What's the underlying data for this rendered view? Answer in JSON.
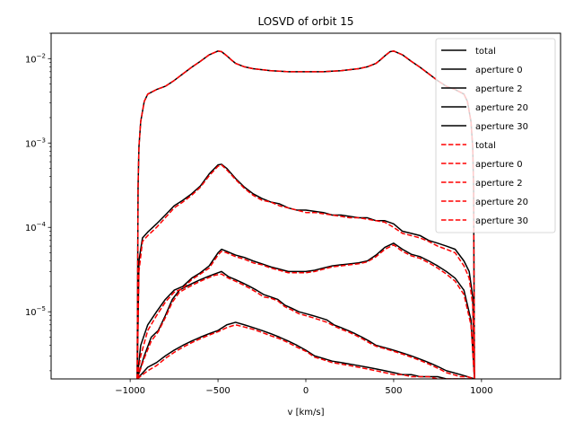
{
  "chart_data": {
    "type": "line",
    "title": "LOSVD of orbit 15",
    "xlabel": "v [km/s]",
    "ylabel": "",
    "yscale": "log",
    "xlim": [
      -1450,
      1450
    ],
    "ylim": [
      1.6e-06,
      0.02
    ],
    "xticks": [
      -1000,
      -500,
      0,
      500,
      1000
    ],
    "xtick_labels": [
      "−1000",
      "−500",
      "0",
      "500",
      "1000"
    ],
    "yticks": [
      1e-05,
      0.0001,
      0.001,
      0.01
    ],
    "ytick_labels": [
      {
        "base": "10",
        "exp": "−5"
      },
      {
        "base": "10",
        "exp": "−4"
      },
      {
        "base": "10",
        "exp": "−3"
      },
      {
        "base": "10",
        "exp": "−2"
      }
    ],
    "grid": false,
    "legend_position": "upper right",
    "series": [
      {
        "name": "total",
        "color": "#000000",
        "dash": "solid",
        "x": [
          -960,
          -955,
          -950,
          -940,
          -920,
          -900,
          -850,
          -800,
          -750,
          -700,
          -650,
          -600,
          -550,
          -500,
          -480,
          -450,
          -420,
          -400,
          -350,
          -300,
          -250,
          -200,
          -150,
          -100,
          -50,
          0,
          50,
          100,
          150,
          200,
          250,
          300,
          350,
          400,
          420,
          450,
          480,
          500,
          550,
          600,
          650,
          700,
          750,
          800,
          850,
          900,
          920,
          940,
          950,
          955,
          960
        ],
        "y": [
          1.6e-06,
          0.0003,
          0.0009,
          0.0018,
          0.0031,
          0.0038,
          0.0043,
          0.0047,
          0.0055,
          0.0066,
          0.0079,
          0.0093,
          0.0111,
          0.0123,
          0.0121,
          0.0108,
          0.0095,
          0.0088,
          0.008,
          0.0076,
          0.0074,
          0.0072,
          0.0071,
          0.007,
          0.007,
          0.007,
          0.007,
          0.007,
          0.0071,
          0.0072,
          0.0074,
          0.0076,
          0.008,
          0.0088,
          0.0095,
          0.0108,
          0.0121,
          0.0123,
          0.0111,
          0.0093,
          0.0079,
          0.0066,
          0.0055,
          0.0047,
          0.0043,
          0.0038,
          0.0031,
          0.0018,
          0.0009,
          0.0003,
          1.6e-06
        ]
      },
      {
        "name": "aperture 0",
        "color": "#000000",
        "dash": "solid",
        "x": [
          -960,
          -950,
          -930,
          -900,
          -850,
          -800,
          -750,
          -700,
          -650,
          -600,
          -550,
          -500,
          -480,
          -450,
          -400,
          -350,
          -300,
          -250,
          -200,
          -150,
          -100,
          -50,
          0,
          50,
          100,
          150,
          200,
          250,
          300,
          350,
          400,
          450,
          500,
          550,
          600,
          650,
          700,
          750,
          800,
          850,
          900,
          930,
          950,
          960
        ],
        "y": [
          1.6e-06,
          4e-05,
          7.5e-05,
          8.8e-05,
          0.00011,
          0.00014,
          0.00018,
          0.00021,
          0.00025,
          0.00031,
          0.00043,
          0.00055,
          0.00056,
          0.0005,
          0.00038,
          0.0003,
          0.00025,
          0.00022,
          0.0002,
          0.00019,
          0.00017,
          0.00016,
          0.00016,
          0.000155,
          0.00015,
          0.00014,
          0.00014,
          0.000135,
          0.00013,
          0.00013,
          0.00012,
          0.00012,
          0.00011,
          9e-05,
          8.5e-05,
          8e-05,
          7e-05,
          6.5e-05,
          6e-05,
          5.5e-05,
          4e-05,
          3e-05,
          1.5e-05,
          1.6e-06
        ]
      },
      {
        "name": "aperture 2",
        "color": "#000000",
        "dash": "solid",
        "x": [
          -960,
          -940,
          -900,
          -850,
          -800,
          -750,
          -700,
          -650,
          -600,
          -550,
          -500,
          -480,
          -450,
          -400,
          -350,
          -300,
          -250,
          -200,
          -150,
          -100,
          -50,
          0,
          50,
          100,
          150,
          200,
          250,
          300,
          350,
          400,
          450,
          500,
          550,
          600,
          650,
          700,
          750,
          800,
          850,
          900,
          940,
          960
        ],
        "y": [
          1.6e-06,
          4e-06,
          7e-06,
          1e-05,
          1.4e-05,
          1.8e-05,
          2e-05,
          2.5e-05,
          2.9e-05,
          3.5e-05,
          5e-05,
          5.5e-05,
          5.2e-05,
          4.7e-05,
          4.4e-05,
          4e-05,
          3.7e-05,
          3.4e-05,
          3.2e-05,
          3e-05,
          3e-05,
          3e-05,
          3.1e-05,
          3.3e-05,
          3.5e-05,
          3.6e-05,
          3.7e-05,
          3.8e-05,
          4e-05,
          4.7e-05,
          5.8e-05,
          6.5e-05,
          5.5e-05,
          4.8e-05,
          4.5e-05,
          4e-05,
          3.5e-05,
          3e-05,
          2.5e-05,
          1.8e-05,
          8e-06,
          1.6e-06
        ]
      },
      {
        "name": "aperture 20",
        "color": "#000000",
        "dash": "solid",
        "x": [
          -960,
          -920,
          -880,
          -840,
          -800,
          -760,
          -720,
          -680,
          -640,
          -600,
          -560,
          -520,
          -480,
          -440,
          -400,
          -360,
          -320,
          -280,
          -240,
          -200,
          -160,
          -120,
          -80,
          -40,
          0,
          40,
          80,
          120,
          160,
          200,
          240,
          280,
          320,
          360,
          400,
          440,
          480,
          520,
          560,
          600,
          640,
          680,
          720,
          760,
          800,
          840,
          880,
          920,
          960
        ],
        "y": [
          1.6e-06,
          3e-06,
          5e-06,
          6e-06,
          9e-06,
          1.4e-05,
          1.8e-05,
          2e-05,
          2.2e-05,
          2.4e-05,
          2.6e-05,
          2.8e-05,
          3e-05,
          2.6e-05,
          2.4e-05,
          2.2e-05,
          2e-05,
          1.8e-05,
          1.6e-05,
          1.5e-05,
          1.4e-05,
          1.2e-05,
          1.1e-05,
          1e-05,
          9.5e-06,
          9e-06,
          8.5e-06,
          8e-06,
          7e-06,
          6.5e-06,
          6e-06,
          5.5e-06,
          5e-06,
          4.5e-06,
          4e-06,
          3.8e-06,
          3.6e-06,
          3.4e-06,
          3.2e-06,
          3e-06,
          2.8e-06,
          2.6e-06,
          2.4e-06,
          2.2e-06,
          2e-06,
          1.9e-06,
          1.8e-06,
          1.7e-06,
          1.6e-06
        ]
      },
      {
        "name": "aperture 30",
        "color": "#000000",
        "dash": "solid",
        "x": [
          -960,
          -900,
          -850,
          -800,
          -750,
          -700,
          -650,
          -600,
          -550,
          -500,
          -450,
          -400,
          -350,
          -300,
          -250,
          -200,
          -150,
          -100,
          -50,
          0,
          50,
          100,
          150,
          200,
          250,
          300,
          350,
          400,
          450,
          500,
          550,
          600,
          650,
          700,
          750,
          800,
          850,
          900,
          960
        ],
        "y": [
          1.6e-06,
          2.2e-06,
          2.5e-06,
          3e-06,
          3.5e-06,
          4e-06,
          4.5e-06,
          5e-06,
          5.5e-06,
          6e-06,
          7e-06,
          7.5e-06,
          7e-06,
          6.5e-06,
          6e-06,
          5.5e-06,
          5e-06,
          4.5e-06,
          4e-06,
          3.5e-06,
          3e-06,
          2.8e-06,
          2.6e-06,
          2.5e-06,
          2.4e-06,
          2.3e-06,
          2.2e-06,
          2.1e-06,
          2e-06,
          1.9e-06,
          1.8e-06,
          1.8e-06,
          1.7e-06,
          1.7e-06,
          1.7e-06,
          1.6e-06,
          1.6e-06,
          1.6e-06,
          1.6e-06
        ]
      },
      {
        "name": "total",
        "color": "#ff0000",
        "dash": "dashed",
        "x": [
          -960,
          -955,
          -950,
          -940,
          -920,
          -900,
          -850,
          -800,
          -750,
          -700,
          -650,
          -600,
          -550,
          -500,
          -480,
          -450,
          -420,
          -400,
          -350,
          -300,
          -250,
          -200,
          -150,
          -100,
          -50,
          0,
          50,
          100,
          150,
          200,
          250,
          300,
          350,
          400,
          420,
          450,
          480,
          500,
          550,
          600,
          650,
          700,
          750,
          800,
          850,
          900,
          920,
          940,
          950,
          955,
          960
        ],
        "y": [
          1.6e-06,
          0.0003,
          0.0009,
          0.0018,
          0.0031,
          0.0038,
          0.0043,
          0.0047,
          0.0055,
          0.0066,
          0.0079,
          0.0093,
          0.0111,
          0.0123,
          0.0121,
          0.0108,
          0.0095,
          0.0088,
          0.008,
          0.0076,
          0.0074,
          0.0072,
          0.0071,
          0.007,
          0.007,
          0.007,
          0.007,
          0.007,
          0.0071,
          0.0072,
          0.0074,
          0.0076,
          0.008,
          0.0088,
          0.0095,
          0.0108,
          0.0121,
          0.0123,
          0.0111,
          0.0093,
          0.0079,
          0.0066,
          0.0055,
          0.0047,
          0.0043,
          0.0038,
          0.0031,
          0.0018,
          0.0009,
          0.0003,
          1.6e-06
        ]
      },
      {
        "name": "aperture 0",
        "color": "#ff0000",
        "dash": "dashed",
        "x": [
          -960,
          -950,
          -930,
          -900,
          -850,
          -800,
          -750,
          -700,
          -650,
          -600,
          -550,
          -500,
          -480,
          -450,
          -400,
          -350,
          -300,
          -250,
          -200,
          -150,
          -100,
          -50,
          0,
          50,
          100,
          150,
          200,
          250,
          300,
          350,
          400,
          450,
          500,
          550,
          600,
          650,
          700,
          750,
          800,
          850,
          900,
          930,
          950,
          960
        ],
        "y": [
          1.6e-06,
          3e-05,
          6.8e-05,
          8e-05,
          0.0001,
          0.00013,
          0.00017,
          0.0002,
          0.00024,
          0.0003,
          0.00041,
          0.00053,
          0.00055,
          0.00048,
          0.00037,
          0.00029,
          0.00024,
          0.00021,
          0.0002,
          0.00018,
          0.00017,
          0.00016,
          0.00015,
          0.00015,
          0.000145,
          0.00014,
          0.000135,
          0.00013,
          0.00013,
          0.000125,
          0.00012,
          0.000115,
          0.0001,
          8.5e-05,
          8e-05,
          7.5e-05,
          6.8e-05,
          6e-05,
          5.5e-05,
          5e-05,
          3.5e-05,
          2.5e-05,
          1.2e-05,
          1.6e-06
        ]
      },
      {
        "name": "aperture 2",
        "color": "#ff0000",
        "dash": "dashed",
        "x": [
          -960,
          -940,
          -900,
          -850,
          -800,
          -750,
          -700,
          -650,
          -600,
          -550,
          -500,
          -480,
          -450,
          -400,
          -350,
          -300,
          -250,
          -200,
          -150,
          -100,
          -50,
          0,
          50,
          100,
          150,
          200,
          250,
          300,
          350,
          400,
          450,
          500,
          550,
          600,
          650,
          700,
          750,
          800,
          850,
          900,
          940,
          960
        ],
        "y": [
          1.6e-06,
          3e-06,
          6e-06,
          9e-06,
          1.3e-05,
          1.7e-05,
          1.9e-05,
          2.4e-05,
          2.8e-05,
          3.3e-05,
          4.7e-05,
          5.2e-05,
          5e-05,
          4.5e-05,
          4.2e-05,
          3.8e-05,
          3.6e-05,
          3.3e-05,
          3.1e-05,
          2.9e-05,
          2.9e-05,
          2.9e-05,
          3e-05,
          3.2e-05,
          3.4e-05,
          3.5e-05,
          3.6e-05,
          3.7e-05,
          3.9e-05,
          4.5e-05,
          5.5e-05,
          6.2e-05,
          5.2e-05,
          4.6e-05,
          4.3e-05,
          3.8e-05,
          3.3e-05,
          2.8e-05,
          2.3e-05,
          1.6e-05,
          7e-06,
          1.6e-06
        ]
      },
      {
        "name": "aperture 20",
        "color": "#ff0000",
        "dash": "dashed",
        "x": [
          -960,
          -920,
          -880,
          -840,
          -800,
          -760,
          -720,
          -680,
          -640,
          -600,
          -560,
          -520,
          -480,
          -440,
          -400,
          -360,
          -320,
          -280,
          -240,
          -200,
          -160,
          -120,
          -80,
          -40,
          0,
          40,
          80,
          120,
          160,
          200,
          240,
          280,
          320,
          360,
          400,
          440,
          480,
          520,
          560,
          600,
          640,
          680,
          720,
          760,
          800,
          840,
          880,
          920,
          960
        ],
        "y": [
          1.6e-06,
          2.8e-06,
          4.5e-06,
          5.8e-06,
          8.5e-06,
          1.3e-05,
          1.7e-05,
          1.9e-05,
          2.1e-05,
          2.3e-05,
          2.5e-05,
          2.7e-05,
          2.8e-05,
          2.5e-05,
          2.3e-05,
          2.1e-05,
          1.9e-05,
          1.7e-05,
          1.5e-05,
          1.45e-05,
          1.35e-05,
          1.15e-05,
          1.05e-05,
          9.5e-06,
          9e-06,
          8.5e-06,
          8e-06,
          7.5e-06,
          6.8e-06,
          6.2e-06,
          5.8e-06,
          5.3e-06,
          4.8e-06,
          4.3e-06,
          3.9e-06,
          3.7e-06,
          3.5e-06,
          3.3e-06,
          3.1e-06,
          2.9e-06,
          2.7e-06,
          2.5e-06,
          2.3e-06,
          2.1e-06,
          1.9e-06,
          1.8e-06,
          1.7e-06,
          1.7e-06,
          1.6e-06
        ]
      },
      {
        "name": "aperture 30",
        "color": "#ff0000",
        "dash": "dashed",
        "x": [
          -960,
          -900,
          -850,
          -800,
          -750,
          -700,
          -650,
          -600,
          -550,
          -500,
          -450,
          -400,
          -350,
          -300,
          -250,
          -200,
          -150,
          -100,
          -50,
          0,
          50,
          100,
          150,
          200,
          250,
          300,
          350,
          400,
          450,
          500,
          550,
          600,
          650,
          700,
          750,
          800,
          850,
          900,
          960
        ],
        "y": [
          1.6e-06,
          2e-06,
          2.3e-06,
          2.8e-06,
          3.3e-06,
          3.8e-06,
          4.3e-06,
          4.8e-06,
          5.3e-06,
          5.8e-06,
          6.5e-06,
          7e-06,
          6.6e-06,
          6.2e-06,
          5.7e-06,
          5.2e-06,
          4.8e-06,
          4.3e-06,
          3.8e-06,
          3.4e-06,
          2.9e-06,
          2.7e-06,
          2.5e-06,
          2.4e-06,
          2.3e-06,
          2.2e-06,
          2.1e-06,
          2e-06,
          1.9e-06,
          1.8e-06,
          1.8e-06,
          1.7e-06,
          1.7e-06,
          1.7e-06,
          1.6e-06,
          1.6e-06,
          1.6e-06,
          1.6e-06,
          1.6e-06
        ]
      }
    ]
  }
}
